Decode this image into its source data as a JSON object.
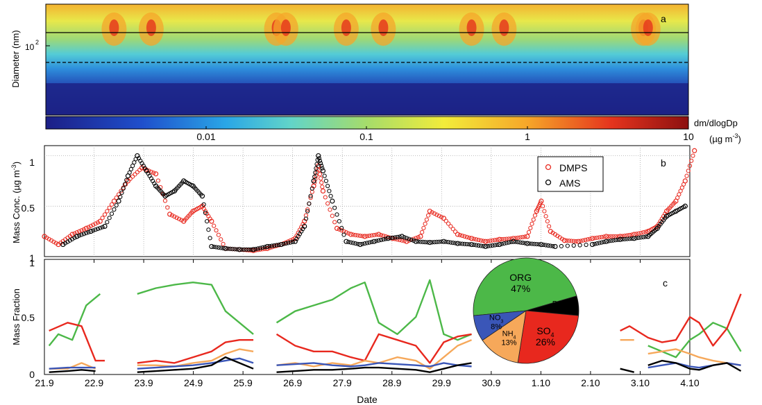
{
  "figure": {
    "panel_a": {
      "label": "a",
      "ylabel": "Diameter (nm)",
      "ytick_base": "10",
      "ytick_exp": "2",
      "colorbar": {
        "title": "dm/dlogDp",
        "unit_prefix": "(µg m",
        "unit_exp": "-3",
        "unit_suffix": ")",
        "ticks": [
          "0.01",
          "0.1",
          "1",
          "10"
        ],
        "scale": "log",
        "range": [
          0.001,
          10
        ],
        "colors": [
          "#1c1f86",
          "#1f4fcc",
          "#2aa6e6",
          "#61d4c9",
          "#a6dc6a",
          "#f2ec3a",
          "#f6a629",
          "#e5341d",
          "#8c1010"
        ]
      }
    },
    "panel_b": {
      "label": "b",
      "ylabel_text": "Mass Conc. (µg m",
      "ylabel_exp": "-3",
      "ylabel_close": ")",
      "yticks": [
        "1",
        "0.5",
        "1"
      ],
      "legend": [
        {
          "name": "DMPS",
          "color": "#e8281e"
        },
        {
          "name": "AMS",
          "color": "#000000"
        }
      ]
    },
    "panel_c": {
      "label": "c",
      "ylabel": "Mass Fraction",
      "yticks": [
        "0",
        "0.5",
        "1"
      ],
      "xlabel": "Date",
      "xticks": [
        "21.9",
        "22.9",
        "23.9",
        "24.9",
        "25.9",
        "26.9",
        "27.9",
        "28.9",
        "29.9",
        "30.9",
        "1.10",
        "2.10",
        "3.10",
        "4.10"
      ],
      "pie": [
        {
          "name": "ORG",
          "value": 47,
          "label": "47%",
          "color": "#4cb848"
        },
        {
          "name": "BC",
          "value": 6,
          "label": "6%",
          "color": "#000000"
        },
        {
          "name": "SO",
          "sub": "4",
          "value": 26,
          "label": "26%",
          "color": "#e8281e"
        },
        {
          "name": "NH",
          "sub": "4",
          "value": 13,
          "label": "13%",
          "color": "#f6a85a"
        },
        {
          "name": "NO",
          "sub": "3",
          "value": 8,
          "label": "8%",
          "color": "#3a56b8"
        }
      ]
    }
  },
  "chart_data": [
    {
      "type": "heatmap",
      "panel": "a",
      "ylabel": "Diameter (nm)",
      "x_range": [
        "21.9",
        "4.10"
      ],
      "color_scale": "log",
      "value_range": [
        0.001,
        10
      ],
      "horizontal_lines": [
        "solid",
        "dashed"
      ],
      "hot_spots_day": [
        1.5,
        2.3,
        5.0,
        5.2,
        6.5,
        7.3,
        9.2,
        9.9,
        12.9,
        13.0
      ]
    },
    {
      "type": "scatter",
      "panel": "b",
      "x_unit": "days after 21.9",
      "ylim": [
        0,
        1.1
      ],
      "series": [
        {
          "name": "DMPS",
          "color": "#e8281e",
          "x": [
            0,
            0.3,
            0.6,
            0.9,
            1.2,
            1.5,
            1.8,
            2.1,
            2.4,
            2.7,
            3.0,
            3.2,
            3.4,
            3.6,
            3.9,
            4.2,
            4.5,
            4.8,
            5.1,
            5.4,
            5.6,
            5.8,
            5.9,
            6.0,
            6.3,
            6.6,
            6.9,
            7.2,
            7.5,
            7.8,
            8.1,
            8.3,
            8.6,
            8.9,
            9.2,
            9.5,
            9.8,
            10.1,
            10.4,
            10.6,
            10.7,
            10.9,
            11.2,
            11.5,
            11.8,
            12.1,
            12.4,
            12.7,
            13.0,
            13.2,
            13.4,
            13.6,
            13.8,
            14.0
          ],
          "y": [
            0.2,
            0.12,
            0.22,
            0.28,
            0.35,
            0.55,
            0.75,
            0.88,
            0.82,
            0.42,
            0.35,
            0.45,
            0.5,
            0.35,
            0.08,
            0.07,
            0.06,
            0.08,
            0.12,
            0.18,
            0.35,
            0.7,
            0.9,
            0.65,
            0.28,
            0.22,
            0.2,
            0.22,
            0.18,
            0.15,
            0.2,
            0.45,
            0.38,
            0.22,
            0.18,
            0.15,
            0.17,
            0.18,
            0.2,
            0.45,
            0.55,
            0.25,
            0.16,
            0.15,
            0.18,
            0.2,
            0.2,
            0.22,
            0.25,
            0.3,
            0.45,
            0.55,
            0.75,
            1.05
          ]
        },
        {
          "name": "AMS",
          "color": "#000000",
          "x": [
            0.4,
            0.7,
            1.0,
            1.3,
            1.6,
            1.8,
            2.0,
            2.2,
            2.4,
            2.6,
            2.8,
            3.0,
            3.2,
            3.4,
            3.6,
            3.9,
            4.2,
            4.5,
            4.8,
            5.1,
            5.4,
            5.6,
            5.8,
            5.9,
            6.0,
            6.2,
            6.5,
            6.8,
            7.1,
            7.4,
            7.7,
            8.0,
            8.3,
            8.6,
            8.9,
            9.2,
            9.5,
            9.8,
            10.1,
            10.4,
            10.7,
            11.0,
            11.8,
            12.1,
            12.4,
            12.7,
            13.0,
            13.2,
            13.4,
            13.6,
            13.8
          ],
          "y": [
            0.12,
            0.2,
            0.25,
            0.3,
            0.55,
            0.8,
            1.0,
            0.85,
            0.7,
            0.6,
            0.65,
            0.75,
            0.7,
            0.6,
            0.1,
            0.08,
            0.07,
            0.07,
            0.1,
            0.12,
            0.15,
            0.3,
            0.75,
            1.0,
            0.85,
            0.55,
            0.15,
            0.12,
            0.15,
            0.18,
            0.2,
            0.15,
            0.14,
            0.15,
            0.13,
            0.12,
            0.1,
            0.12,
            0.15,
            0.13,
            0.12,
            0.1,
            0.12,
            0.15,
            0.17,
            0.18,
            0.2,
            0.28,
            0.4,
            0.45,
            0.5
          ]
        }
      ]
    },
    {
      "type": "line",
      "panel": "c",
      "x_unit": "days after 21.9",
      "ylim": [
        0,
        1
      ],
      "series": [
        {
          "name": "ORG",
          "color": "#4cb848",
          "segments": [
            {
              "x": [
                0.1,
                0.3,
                0.6,
                0.9,
                1.2
              ],
              "y": [
                0.25,
                0.35,
                0.3,
                0.6,
                0.7
              ]
            },
            {
              "x": [
                2.0,
                2.4,
                2.8,
                3.2,
                3.6,
                3.9,
                4.2,
                4.5
              ],
              "y": [
                0.7,
                0.75,
                0.78,
                0.8,
                0.78,
                0.55,
                0.45,
                0.35
              ]
            },
            {
              "x": [
                5.0,
                5.4,
                5.8,
                6.2,
                6.6,
                6.9,
                7.2,
                7.6,
                8.0,
                8.3,
                8.6,
                8.9,
                9.2
              ],
              "y": [
                0.45,
                0.55,
                0.6,
                0.65,
                0.75,
                0.8,
                0.45,
                0.35,
                0.5,
                0.82,
                0.35,
                0.3,
                0.35
              ]
            },
            {
              "x": [
                13.0,
                13.3,
                13.6,
                13.9,
                14.1,
                14.4,
                14.7,
                15.0
              ],
              "y": [
                0.25,
                0.2,
                0.15,
                0.3,
                0.35,
                0.45,
                0.4,
                0.2
              ]
            }
          ]
        },
        {
          "name": "SO4",
          "color": "#e8281e",
          "segments": [
            {
              "x": [
                0.1,
                0.5,
                0.8,
                1.1,
                1.3
              ],
              "y": [
                0.38,
                0.45,
                0.42,
                0.12,
                0.12
              ]
            },
            {
              "x": [
                2.0,
                2.4,
                2.8,
                3.2,
                3.6,
                3.9,
                4.2,
                4.5
              ],
              "y": [
                0.1,
                0.12,
                0.1,
                0.15,
                0.2,
                0.28,
                0.3,
                0.3
              ]
            },
            {
              "x": [
                5.0,
                5.4,
                5.8,
                6.2,
                6.6,
                6.9,
                7.2,
                7.6,
                8.0,
                8.3,
                8.6,
                8.9,
                9.2
              ],
              "y": [
                0.35,
                0.25,
                0.2,
                0.2,
                0.15,
                0.12,
                0.35,
                0.3,
                0.25,
                0.1,
                0.28,
                0.33,
                0.35
              ]
            },
            {
              "x": [
                12.4,
                12.6,
                13.0,
                13.3,
                13.6,
                13.9,
                14.1,
                14.4,
                14.7,
                15.0
              ],
              "y": [
                0.38,
                0.42,
                0.32,
                0.28,
                0.3,
                0.5,
                0.45,
                0.25,
                0.4,
                0.7
              ]
            }
          ]
        },
        {
          "name": "NH4",
          "color": "#f6a85a",
          "segments": [
            {
              "x": [
                0.1,
                0.5,
                0.8,
                1.1
              ],
              "y": [
                0.05,
                0.05,
                0.1,
                0.05
              ]
            },
            {
              "x": [
                2.0,
                2.4,
                2.8,
                3.2,
                3.6,
                3.9,
                4.2,
                4.5
              ],
              "y": [
                0.08,
                0.08,
                0.07,
                0.1,
                0.12,
                0.18,
                0.22,
                0.2
              ]
            },
            {
              "x": [
                5.0,
                5.4,
                5.8,
                6.2,
                6.6,
                6.9,
                7.2,
                7.6,
                8.0,
                8.3,
                8.6,
                8.9,
                9.2
              ],
              "y": [
                0.08,
                0.1,
                0.07,
                0.1,
                0.08,
                0.12,
                0.1,
                0.15,
                0.12,
                0.05,
                0.15,
                0.25,
                0.3
              ]
            },
            {
              "x": [
                12.4,
                12.7
              ],
              "y": [
                0.3,
                0.3
              ]
            },
            {
              "x": [
                13.0,
                13.3,
                13.6,
                13.9,
                14.1,
                14.4,
                14.7,
                15.0
              ],
              "y": [
                0.18,
                0.2,
                0.22,
                0.18,
                0.15,
                0.12,
                0.1,
                0.08
              ]
            }
          ]
        },
        {
          "name": "NO3",
          "color": "#3a56b8",
          "segments": [
            {
              "x": [
                0.1,
                0.5,
                0.8,
                1.1
              ],
              "y": [
                0.05,
                0.06,
                0.06,
                0.06
              ]
            },
            {
              "x": [
                2.0,
                2.4,
                2.8,
                3.2,
                3.6,
                3.9,
                4.2,
                4.5
              ],
              "y": [
                0.05,
                0.06,
                0.07,
                0.08,
                0.1,
                0.12,
                0.14,
                0.1
              ]
            },
            {
              "x": [
                5.0,
                5.4,
                5.8,
                6.2,
                6.6,
                6.9,
                7.2,
                7.6,
                8.0,
                8.3,
                8.6,
                8.9,
                9.2
              ],
              "y": [
                0.08,
                0.09,
                0.1,
                0.08,
                0.07,
                0.08,
                0.1,
                0.09,
                0.08,
                0.07,
                0.1,
                0.08,
                0.07
              ]
            },
            {
              "x": [
                13.0,
                13.3,
                13.6,
                13.9,
                14.1,
                14.4,
                14.7,
                15.0
              ],
              "y": [
                0.06,
                0.08,
                0.1,
                0.07,
                0.06,
                0.08,
                0.1,
                0.08
              ]
            }
          ]
        },
        {
          "name": "BC",
          "color": "#000000",
          "segments": [
            {
              "x": [
                0.1,
                0.5,
                0.8,
                1.1
              ],
              "y": [
                0.02,
                0.03,
                0.04,
                0.03
              ]
            },
            {
              "x": [
                2.0,
                2.4,
                2.8,
                3.2,
                3.6,
                3.9,
                4.2,
                4.5
              ],
              "y": [
                0.02,
                0.03,
                0.04,
                0.05,
                0.08,
                0.15,
                0.1,
                0.05
              ]
            },
            {
              "x": [
                5.0,
                5.4,
                5.8,
                6.2,
                6.6,
                6.9,
                7.2,
                7.6,
                8.0,
                8.3,
                8.6,
                8.9,
                9.2
              ],
              "y": [
                0.02,
                0.03,
                0.04,
                0.04,
                0.05,
                0.06,
                0.06,
                0.05,
                0.04,
                0.02,
                0.05,
                0.08,
                0.1
              ]
            },
            {
              "x": [
                12.4,
                12.7
              ],
              "y": [
                0.05,
                0.02
              ]
            },
            {
              "x": [
                13.0,
                13.3,
                13.6,
                13.9,
                14.1,
                14.4,
                14.7,
                15.0
              ],
              "y": [
                0.08,
                0.12,
                0.1,
                0.05,
                0.04,
                0.08,
                0.1,
                0.03
              ]
            }
          ]
        }
      ]
    },
    {
      "type": "pie",
      "panel": "c-inset",
      "categories": [
        "ORG",
        "BC",
        "SO4",
        "NH4",
        "NO3"
      ],
      "values": [
        47,
        6,
        26,
        13,
        8
      ]
    }
  ]
}
